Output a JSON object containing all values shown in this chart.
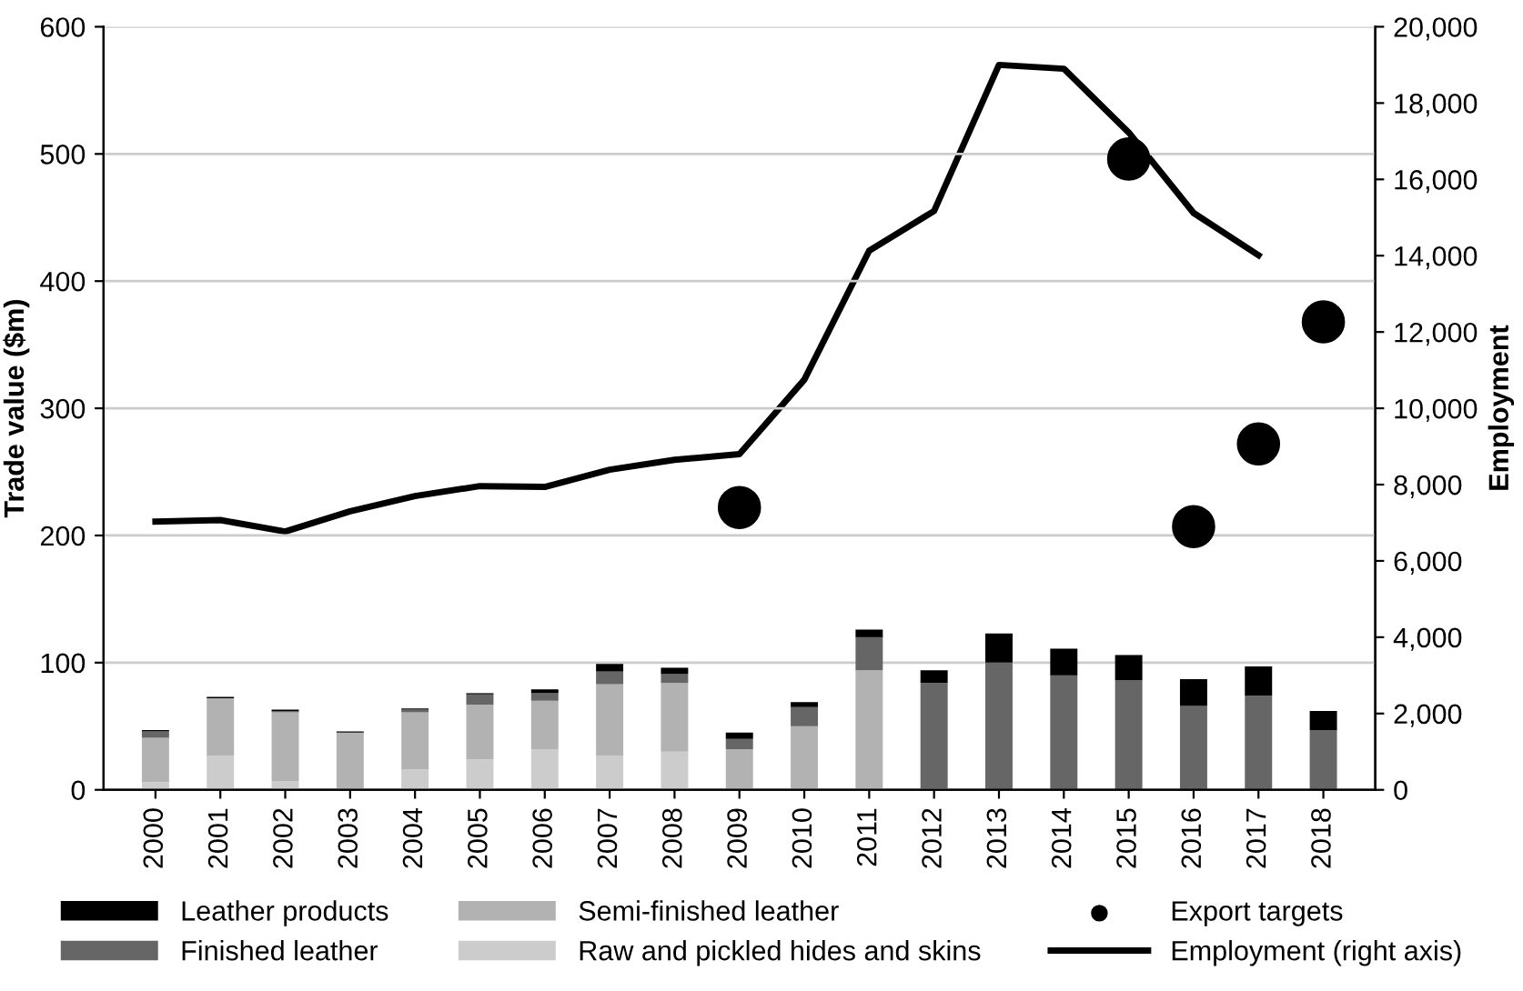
{
  "chart_data": {
    "type": "bar",
    "stacked": true,
    "ylabel": "Trade value ($m)",
    "y2label": "Employment",
    "categories": [
      "2000",
      "2001",
      "2002",
      "2003",
      "2004",
      "2005",
      "2006",
      "2007",
      "2008",
      "2009",
      "2010",
      "2011",
      "2012",
      "2013",
      "2014",
      "2015",
      "2016",
      "2017",
      "2018"
    ],
    "series": [
      {
        "name": "Raw and pickled hides and skins",
        "color": "#cccccc",
        "values": [
          6,
          27,
          7,
          0,
          16,
          24,
          32,
          27,
          30,
          0,
          0,
          0,
          0,
          0,
          0,
          0,
          0,
          0,
          0
        ]
      },
      {
        "name": "Semi-finished leather",
        "color": "#b2b2b2",
        "values": [
          35,
          45,
          54,
          45,
          45,
          43,
          38,
          56,
          54,
          32,
          50,
          94,
          1,
          0,
          0,
          0,
          0,
          0,
          0
        ]
      },
      {
        "name": "Finished leather",
        "color": "#666666",
        "values": [
          5,
          0,
          1,
          0,
          2,
          8,
          6,
          10,
          7,
          8,
          15,
          26,
          83,
          100,
          90,
          86,
          66,
          74,
          47
        ]
      },
      {
        "name": "Leather products",
        "color": "#000000",
        "values": [
          1,
          1,
          1,
          1,
          1,
          1,
          3,
          6,
          5,
          5,
          4,
          6,
          10,
          23,
          21,
          20,
          21,
          23,
          15
        ]
      },
      {
        "name": "Export targets",
        "type": "scatter",
        "color": "#000000",
        "marker": "circle",
        "values": [
          null,
          null,
          null,
          null,
          null,
          null,
          null,
          null,
          null,
          222,
          null,
          null,
          null,
          null,
          null,
          496,
          207,
          272,
          368
        ]
      },
      {
        "name": "Employment (right axis)",
        "type": "line",
        "axis": "y2",
        "color": "#000000",
        "marker": "none",
        "line_style": "solid",
        "values": [
          7030,
          7070,
          6770,
          7300,
          7700,
          7960,
          7940,
          8390,
          8650,
          8800,
          10750,
          14130,
          15170,
          19000,
          18900,
          17230,
          15120,
          14010,
          null
        ]
      }
    ],
    "ylim": [
      0,
      600
    ],
    "yticks": [
      0,
      100,
      200,
      300,
      400,
      500,
      600
    ],
    "y2lim": [
      0,
      20000
    ],
    "y2ticks": [
      {
        "value": 0,
        "label": "0"
      },
      {
        "value": 2000,
        "label": "2,000"
      },
      {
        "value": 4000,
        "label": "4,000"
      },
      {
        "value": 6000,
        "label": "6,000"
      },
      {
        "value": 8000,
        "label": "8,000"
      },
      {
        "value": 10000,
        "label": "10,000"
      },
      {
        "value": 12000,
        "label": "12,000"
      },
      {
        "value": 14000,
        "label": "14,000"
      },
      {
        "value": 16000,
        "label": "16,000"
      },
      {
        "value": 18000,
        "label": "18,000"
      },
      {
        "value": 20000,
        "label": "20,000"
      }
    ],
    "grid": "y",
    "legend": "bottom"
  }
}
